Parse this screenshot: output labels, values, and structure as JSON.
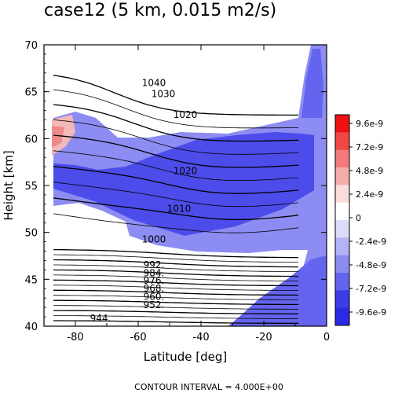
{
  "chart_data": {
    "type": "contour",
    "title": "case12 (5 km, 0.015 m2/s)",
    "xlabel": "Latitude [deg]",
    "ylabel": "Height [km]",
    "xlim": [
      -90,
      0
    ],
    "ylim": [
      40,
      70
    ],
    "xticks": [
      "-80",
      "-60",
      "-40",
      "-20",
      "0"
    ],
    "yticks": [
      "40",
      "45",
      "50",
      "55",
      "60",
      "65",
      "70"
    ],
    "footer": "CONTOUR INTERVAL = 4.000E+00",
    "colorbar": {
      "labels": [
        "9.6e-9",
        "7.2e-9",
        "4.8e-9",
        "2.4e-9",
        "0",
        "-2.4e-9",
        "-4.8e-9",
        "-7.2e-9",
        "-9.6e-9"
      ],
      "colors": [
        "#ee1111",
        "#f04646",
        "#f37a7a",
        "#f7acac",
        "#fbdcdc",
        "#ffffff",
        "#dcdcfb",
        "#b3b3f7",
        "#8c8cf2",
        "#6464ee",
        "#3c3ce8",
        "#2a2ae4"
      ]
    },
    "contour_labels": [
      {
        "text": "1040",
        "lat": -55,
        "z": 65.9
      },
      {
        "text": "1030",
        "lat": -52,
        "z": 64.7
      },
      {
        "text": "1020",
        "lat": -45,
        "z": 62.5
      },
      {
        "text": "1020",
        "lat": -45,
        "z": 56.5
      },
      {
        "text": "1010",
        "lat": -47,
        "z": 52.5
      },
      {
        "text": "1000",
        "lat": -55,
        "z": 49.2
      },
      {
        "text": "992.",
        "lat": -55,
        "z": 46.5
      },
      {
        "text": "984.",
        "lat": -55,
        "z": 45.6
      },
      {
        "text": "976.",
        "lat": -55,
        "z": 44.8
      },
      {
        "text": "968.",
        "lat": -55,
        "z": 44.0
      },
      {
        "text": "960.",
        "lat": -55,
        "z": 43.1
      },
      {
        "text": "952.",
        "lat": -55,
        "z": 42.2
      },
      {
        "text": "944.",
        "lat": -72,
        "z": 40.8
      }
    ],
    "contour_levels": [
      944,
      948,
      952,
      956,
      960,
      964,
      968,
      972,
      976,
      980,
      984,
      988,
      992,
      996,
      1000,
      1004,
      1008,
      1012,
      1016,
      1020,
      1024,
      1028,
      1032,
      1036,
      1040
    ]
  }
}
